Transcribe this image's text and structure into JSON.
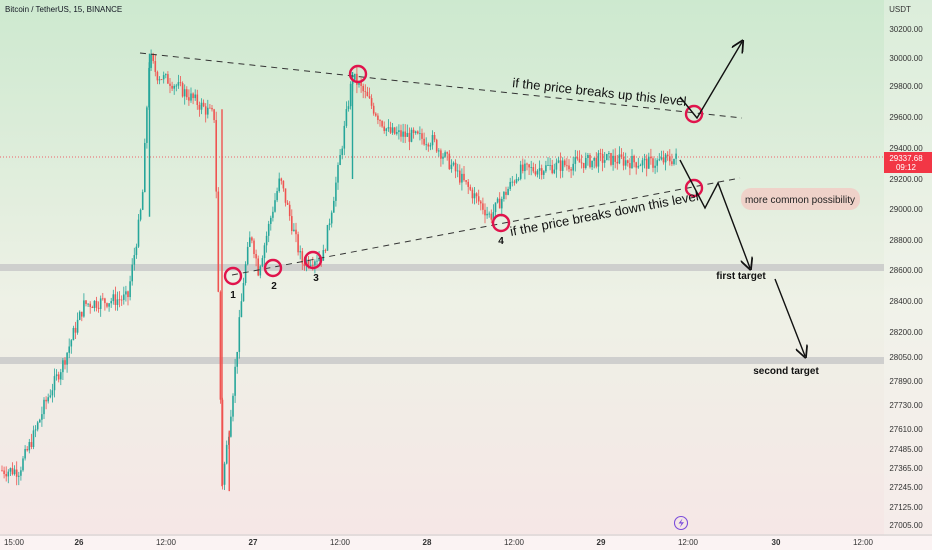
{
  "header": {
    "title": "Bitcoin / TetherUS, 15, BINANCE"
  },
  "price_axis": {
    "unit_label": "USDT",
    "ticks": [
      "30200.00",
      "30000.00",
      "29800.00",
      "29600.00",
      "29400.00",
      "29200.00",
      "29000.00",
      "28800.00",
      "28600.00",
      "28400.00",
      "28200.00",
      "28050.00",
      "27890.00",
      "27730.00",
      "27610.00",
      "27485.00",
      "27365.00",
      "27245.00",
      "27125.00",
      "27005.00"
    ],
    "current_price": "29337.68",
    "countdown": "09:12"
  },
  "time_axis": {
    "ticks": [
      "15:00",
      "26",
      "12:00",
      "27",
      "12:00",
      "28",
      "12:00",
      "29",
      "12:00",
      "30",
      "12:00"
    ]
  },
  "annotations": {
    "upper_text": "if the price breaks up this level",
    "lower_text": "if the price breaks down this level",
    "possibility_badge": "more common possibility",
    "first_target": "first target",
    "second_target": "second target",
    "touch_labels": [
      "1",
      "2",
      "3",
      "4"
    ]
  },
  "colors": {
    "up": "#26a69a",
    "down": "#ef5350",
    "circle": "#e0144c",
    "price_tag": "#f23645",
    "bg_top": "#cde9cf",
    "bg_bottom": "#f6e6e6",
    "zone": "#c9c9c9",
    "badge": "#efd2c9"
  },
  "chart_data": {
    "type": "candlestick",
    "title": "Bitcoin / TetherUS, 15, BINANCE",
    "ylabel": "USDT",
    "ylim": [
      26950,
      30350
    ],
    "current_price": 29337.68,
    "support_zones": [
      28620,
      28020
    ],
    "targets": {
      "first target": 28620,
      "second target": 28020
    },
    "keypoints": [
      {
        "t": "25 15:00",
        "price": 27350
      },
      {
        "t": "25 21:00",
        "price": 28000
      },
      {
        "t": "26 00:00",
        "price": 28380
      },
      {
        "t": "26 06:00",
        "price": 28420
      },
      {
        "t": "26 08:00",
        "price": 29050
      },
      {
        "t": "26 09:00",
        "price": 30020
      },
      {
        "t": "26 10:00",
        "price": 29880
      },
      {
        "t": "26 12:00",
        "price": 29830
      },
      {
        "t": "26 18:00",
        "price": 29600
      },
      {
        "t": "26 19:00",
        "price": 27250
      },
      {
        "t": "26 20:30",
        "price": 27820
      },
      {
        "t": "26 22:00",
        "price": 28550
      },
      {
        "t": "26 23:00",
        "price": 28850
      },
      {
        "t": "27 00:00",
        "price": 28600
      },
      {
        "t": "27 03:00",
        "price": 29200
      },
      {
        "t": "27 06:00",
        "price": 28650
      },
      {
        "t": "27 09:00",
        "price": 28700
      },
      {
        "t": "27 11:00",
        "price": 29250
      },
      {
        "t": "27 13:00",
        "price": 29870
      },
      {
        "t": "27 18:00",
        "price": 29500
      },
      {
        "t": "28 00:00",
        "price": 29450
      },
      {
        "t": "28 04:00",
        "price": 29200
      },
      {
        "t": "28 08:00",
        "price": 28950
      },
      {
        "t": "28 12:00",
        "price": 29250
      },
      {
        "t": "29 00:00",
        "price": 29330
      },
      {
        "t": "29 06:00",
        "price": 29300
      },
      {
        "t": "29 10:00",
        "price": 29337.68
      }
    ]
  }
}
